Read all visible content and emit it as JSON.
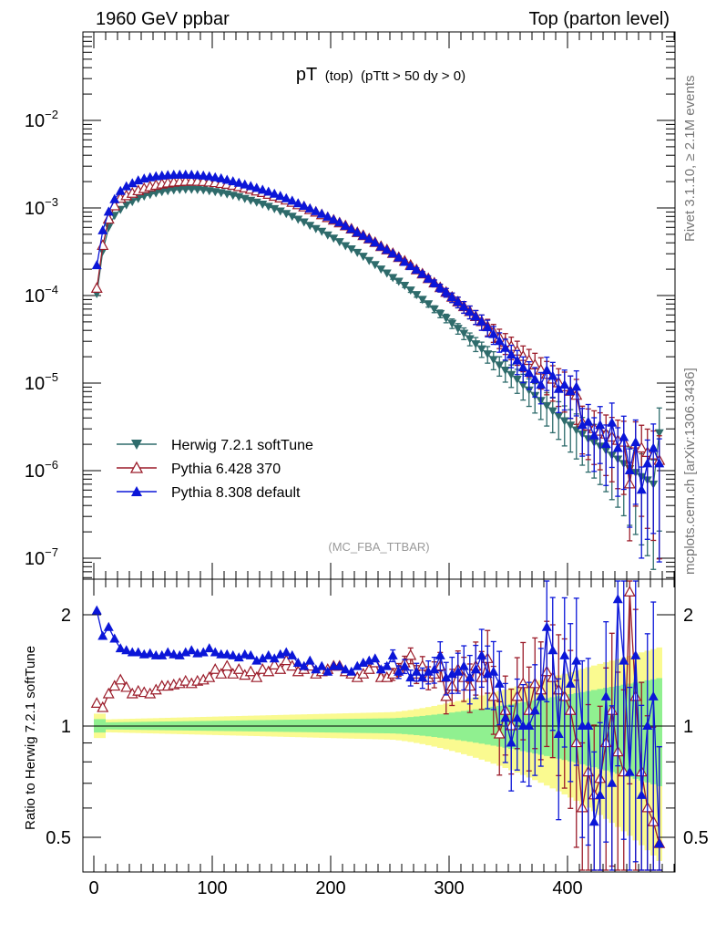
{
  "header": {
    "left": "1960 GeV ppbar",
    "right": "Top (parton level)"
  },
  "side_labels": {
    "rivet": "Rivet 3.1.10, ≥ 2.1M events",
    "mcplots": "mcplots.cern.ch [arXiv:1306.3436]"
  },
  "plot_title": {
    "main": "pT",
    "sub1": "(top)",
    "sub2": "(pTtt > 50 dy > 0)"
  },
  "watermark": "(MC_FBA_TTBAR)",
  "ratio_ylabel": "Ratio to Herwig 7.2.1 softTune",
  "legend": {
    "herwig": "Herwig 7.2.1 softTune",
    "pythia6": "Pythia 6.428 370",
    "pythia8": "Pythia 8.308 default"
  },
  "colors": {
    "herwig": "#2e6b6b",
    "pythia6": "#9b1c2a",
    "pythia8": "#0b16d8",
    "band_inner": "#90f090",
    "band_outer": "#fafa90"
  },
  "chart_data": {
    "type": "line",
    "x_bin_width": 5,
    "xlim": [
      -10,
      490
    ],
    "ylim_main": [
      5e-08,
      0.1
    ],
    "yscale_main": "log",
    "main_ticks": [
      "10^-2",
      "10^-3",
      "10^-4",
      "10^-5",
      "10^-6",
      "10^-7"
    ],
    "ratio_ylim": [
      0.4,
      2.4
    ],
    "yscale_ratio": "log",
    "ratio_ticks": [
      "2",
      "1",
      "0.5"
    ],
    "x_ticks": [
      "0",
      "100",
      "200",
      "300",
      "400"
    ],
    "x": [
      2.5,
      7.5,
      12.5,
      17.5,
      22.5,
      27.5,
      32.5,
      37.5,
      42.5,
      47.5,
      52.5,
      57.5,
      62.5,
      67.5,
      72.5,
      77.5,
      82.5,
      87.5,
      92.5,
      97.5,
      102.5,
      107.5,
      112.5,
      117.5,
      122.5,
      127.5,
      132.5,
      137.5,
      142.5,
      147.5,
      152.5,
      157.5,
      162.5,
      167.5,
      172.5,
      177.5,
      182.5,
      187.5,
      192.5,
      197.5,
      202.5,
      207.5,
      212.5,
      217.5,
      222.5,
      227.5,
      232.5,
      237.5,
      242.5,
      247.5,
      252.5,
      257.5,
      262.5,
      267.5,
      272.5,
      277.5,
      282.5,
      287.5,
      292.5,
      297.5,
      302.5,
      307.5,
      312.5,
      317.5,
      322.5,
      327.5,
      332.5,
      337.5,
      342.5,
      347.5,
      352.5,
      357.5,
      362.5,
      367.5,
      372.5,
      377.5,
      382.5,
      387.5,
      392.5,
      397.5,
      402.5,
      407.5,
      412.5,
      417.5,
      422.5,
      427.5,
      432.5,
      437.5,
      442.5,
      447.5,
      452.5,
      457.5,
      462.5,
      467.5,
      472.5,
      477.5
    ],
    "series": [
      {
        "name": "Herwig 7.2.1 softTune",
        "values": [
          0.000105,
          0.00032,
          0.0006,
          0.00082,
          0.00096,
          0.00108,
          0.00118,
          0.00128,
          0.00136,
          0.00142,
          0.00148,
          0.00153,
          0.00157,
          0.0016,
          0.00162,
          0.00163,
          0.00163,
          0.00162,
          0.0016,
          0.00157,
          0.00153,
          0.00149,
          0.00144,
          0.00139,
          0.00134,
          0.00128,
          0.00122,
          0.00116,
          0.0011,
          0.00104,
          0.00098,
          0.00092,
          0.00086,
          0.0008,
          0.00074,
          0.00069,
          0.00063,
          0.00058,
          0.00054,
          0.00049,
          0.00045,
          0.00041,
          0.00037,
          0.00034,
          0.00031,
          0.00028,
          0.00025,
          0.000225,
          0.0002,
          0.00018,
          0.00016,
          0.000145,
          0.00013,
          0.000115,
          0.000102,
          9e-05,
          8e-05,
          7e-05,
          6.2e-05,
          5.5e-05,
          4.8e-05,
          4.2e-05,
          3.7e-05,
          3.2e-05,
          2.8e-05,
          2.45e-05,
          2.15e-05,
          1.85e-05,
          1.6e-05,
          1.4e-05,
          1.25e-05,
          1.1e-05,
          9.5e-06,
          8.3e-06,
          7.2e-06,
          6.3e-06,
          5.5e-06,
          4.8e-06,
          4.2e-06,
          3.7e-06,
          3.3e-06,
          2.9e-06,
          2.6e-06,
          2.3e-06,
          2.1e-06,
          1.9e-06,
          1.7e-06,
          1.5e-06,
          1.35e-06,
          1.2e-06,
          1.05e-06,
          9.5e-07,
          8.5e-07,
          7.8e-07,
          7e-07,
          2.7e-06
        ]
      },
      {
        "name": "Pythia 6.428 370",
        "values": [
          0.00012,
          0.00037,
          0.00074,
          0.00105,
          0.00128,
          0.00137,
          0.00146,
          0.00156,
          0.00165,
          0.00173,
          0.0018,
          0.00186,
          0.00191,
          0.00195,
          0.00198,
          0.002,
          0.00201,
          0.002,
          0.00199,
          0.00196,
          0.00193,
          0.00189,
          0.00185,
          0.0018,
          0.00174,
          0.00168,
          0.00162,
          0.00155,
          0.00149,
          0.00142,
          0.00135,
          0.00129,
          0.00122,
          0.00115,
          0.00108,
          0.00102,
          0.00095,
          0.00089,
          0.00083,
          0.00077,
          0.00072,
          0.00067,
          0.00062,
          0.00057,
          0.00052,
          0.00048,
          0.00044,
          0.0004,
          0.00036,
          0.00033,
          0.0003,
          0.00027,
          0.000245,
          0.00022,
          0.000195,
          0.000175,
          0.000155,
          0.000138,
          0.000122,
          0.000108,
          9.5e-05,
          8.4e-05,
          7.4e-05,
          6.5e-05,
          5.7e-05,
          5e-05,
          4.4e-05,
          3.8e-05,
          3.3e-05,
          2.9e-05,
          2.6e-05,
          2.3e-05,
          2e-05,
          1.8e-05,
          1.6e-05,
          1.4e-05,
          1.25e-05,
          1.1e-05,
          1e-05,
          9e-06,
          8e-06,
          7.2e-06,
          3.5e-06,
          3.2e-06,
          3e-06,
          2.8e-06,
          2.6e-06,
          2.4e-06,
          2.2e-06,
          2.1e-06,
          7e-07,
          2e-06,
          1.8e-06,
          1.6e-06,
          1.5e-06,
          1.3e-06
        ]
      },
      {
        "name": "Pythia 8.308 default",
        "values": [
          0.00022,
          0.00055,
          0.0009,
          0.00125,
          0.00155,
          0.00175,
          0.0019,
          0.00205,
          0.00215,
          0.00222,
          0.00228,
          0.00232,
          0.00235,
          0.00237,
          0.00238,
          0.00238,
          0.00237,
          0.00235,
          0.00232,
          0.00228,
          0.00222,
          0.00216,
          0.00208,
          0.002,
          0.00192,
          0.00184,
          0.00176,
          0.00168,
          0.0016,
          0.00152,
          0.00144,
          0.00136,
          0.00128,
          0.0012,
          0.00112,
          0.00105,
          0.00098,
          0.00091,
          0.00085,
          0.00079,
          0.00073,
          0.00068,
          0.00062,
          0.00057,
          0.00052,
          0.00048,
          0.00044,
          0.0004,
          0.00036,
          0.00033,
          0.0003,
          0.00027,
          0.00024,
          0.000215,
          0.000195,
          0.000175,
          0.000155,
          0.000138,
          0.000122,
          0.000108,
          9.5e-05,
          8.4e-05,
          7.4e-05,
          6.5e-05,
          5.7e-05,
          5e-05,
          4.3e-05,
          3.6e-05,
          3e-05,
          2.5e-05,
          2.1e-05,
          1.8e-05,
          1.5e-05,
          1.3e-05,
          1.1e-05,
          9.5e-06,
          1.4e-05,
          1.2e-05,
          8.5e-06,
          9.5e-06,
          8e-06,
          9e-06,
          3.3e-06,
          3.6e-06,
          2.5e-06,
          3.3e-06,
          2e-06,
          3.5e-06,
          1.8e-06,
          2.4e-06,
          1e-06,
          2.1e-06,
          6e-07,
          1.2e-06,
          1.8e-06,
          1.2e-06
        ]
      }
    ],
    "ratio_series": [
      {
        "name": "Pythia 6.428 370",
        "values": [
          1.15,
          1.12,
          1.22,
          1.28,
          1.33,
          1.27,
          1.22,
          1.24,
          1.23,
          1.22,
          1.25,
          1.28,
          1.28,
          1.29,
          1.3,
          1.32,
          1.3,
          1.32,
          1.33,
          1.35,
          1.42,
          1.38,
          1.45,
          1.38,
          1.42,
          1.37,
          1.4,
          1.35,
          1.42,
          1.4,
          1.46,
          1.42,
          1.5,
          1.45,
          1.4,
          1.42,
          1.45,
          1.38,
          1.4,
          1.42,
          1.45,
          1.45,
          1.4,
          1.38,
          1.35,
          1.38,
          1.42,
          1.48,
          1.35,
          1.35,
          1.38,
          1.42,
          1.48,
          1.55,
          1.38,
          1.45,
          1.35,
          1.38,
          1.45,
          1.2,
          1.28,
          1.42,
          1.35,
          1.28,
          1.45,
          1.35,
          1.52,
          1.2,
          0.95,
          1.1,
          1.0,
          1.2,
          1.3,
          1.1,
          1.3,
          1.25,
          1.4,
          1.35,
          1.25,
          1.2,
          1.1,
          0.9,
          0.6,
          0.75,
          0.65,
          0.72,
          0.9,
          1.1,
          0.85,
          0.75,
          2.3,
          1.2,
          0.75,
          0.6,
          0.55,
          0.48
        ]
      },
      {
        "name": "Pythia 8.308 default",
        "values": [
          2.05,
          1.75,
          1.85,
          1.72,
          1.62,
          1.6,
          1.58,
          1.58,
          1.56,
          1.57,
          1.55,
          1.55,
          1.58,
          1.56,
          1.55,
          1.58,
          1.6,
          1.57,
          1.58,
          1.62,
          1.58,
          1.56,
          1.56,
          1.55,
          1.53,
          1.56,
          1.55,
          1.5,
          1.52,
          1.55,
          1.52,
          1.56,
          1.58,
          1.55,
          1.48,
          1.45,
          1.5,
          1.42,
          1.45,
          1.4,
          1.45,
          1.45,
          1.42,
          1.4,
          1.45,
          1.48,
          1.5,
          1.52,
          1.42,
          1.45,
          1.55,
          1.4,
          1.45,
          1.35,
          1.4,
          1.35,
          1.4,
          1.42,
          1.55,
          1.35,
          1.38,
          1.4,
          1.45,
          1.35,
          1.42,
          1.55,
          1.38,
          1.4,
          1.3,
          1.05,
          0.9,
          1.05,
          1.0,
          1.0,
          1.1,
          1.2,
          1.85,
          1.6,
          0.95,
          1.55,
          1.3,
          1.5,
          1.0,
          1.0,
          0.55,
          0.65,
          1.2,
          0.7,
          2.2,
          1.5,
          0.75,
          1.55,
          0.65,
          1.0,
          1.2,
          0.48
        ]
      }
    ]
  }
}
